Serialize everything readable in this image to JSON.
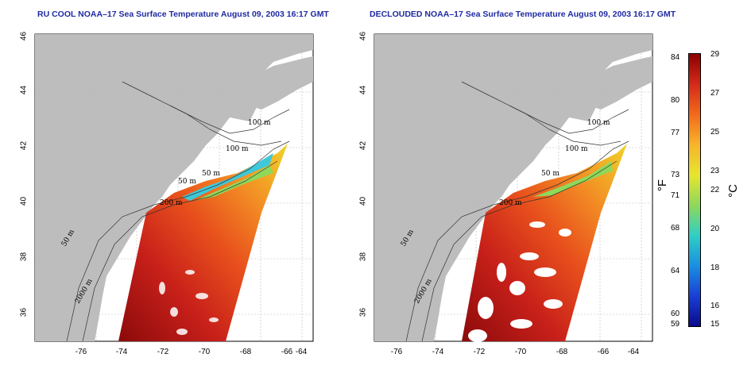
{
  "titles": {
    "left": "RU COOL NOAA–17 Sea Surface Temperature August 09, 2003 16:17 GMT",
    "right": "DECLOUDED NOAA–17 Sea Surface Temperature August 09, 2003 16:17 GMT"
  },
  "axes": {
    "x_ticks": [
      "-76",
      "-74",
      "-72",
      "-70",
      "-68",
      "-66",
      "-64"
    ],
    "y_ticks": [
      "36",
      "38",
      "40",
      "42",
      "44",
      "46"
    ]
  },
  "contour_labels": {
    "left": [
      "100 m",
      "100 m",
      "50 m",
      "50 m",
      "200 m",
      "50 m",
      "2000 m"
    ],
    "right": [
      "100 m",
      "100 m",
      "50 m",
      "200 m",
      "50 m",
      "2000 m"
    ]
  },
  "colorbar": {
    "fahrenheit_ticks": [
      "84",
      "80",
      "77",
      "73",
      "71",
      "68",
      "64",
      "60",
      "59"
    ],
    "celsius_ticks": [
      "29",
      "27",
      "25",
      "23",
      "22",
      "20",
      "18",
      "16",
      "15"
    ],
    "fahrenheit_unit": "°F",
    "celsius_unit": "°C",
    "colors": [
      "#8b0000",
      "#d42a1a",
      "#f26a1c",
      "#f7b42a",
      "#e7e52f",
      "#8fd85a",
      "#2fcfc4",
      "#1a8fe0",
      "#1a3fd6",
      "#0a0a8a"
    ]
  },
  "legend_colors": {
    "land": "#bdbdbd",
    "water_mask": "#ffffff"
  }
}
